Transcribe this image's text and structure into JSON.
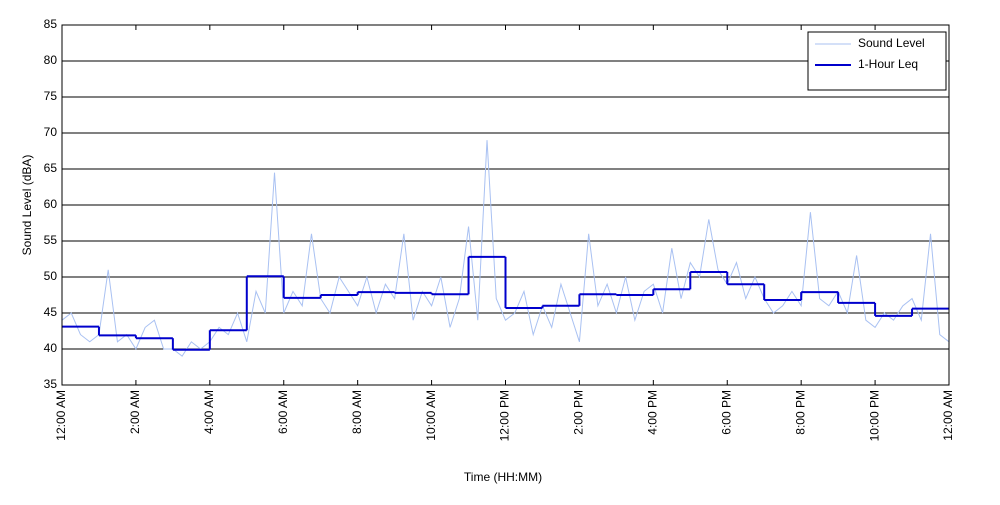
{
  "chart_data": {
    "type": "line",
    "xlabel": "Time (HH:MM)",
    "ylabel": "Sound Level (dBA)",
    "xlim": [
      0,
      24
    ],
    "ylim": [
      35,
      85
    ],
    "xticks": [
      {
        "value": 0,
        "label": "12:00 AM"
      },
      {
        "value": 2,
        "label": "2:00 AM"
      },
      {
        "value": 4,
        "label": "4:00 AM"
      },
      {
        "value": 6,
        "label": "6:00 AM"
      },
      {
        "value": 8,
        "label": "8:00 AM"
      },
      {
        "value": 10,
        "label": "10:00 AM"
      },
      {
        "value": 12,
        "label": "12:00 PM"
      },
      {
        "value": 14,
        "label": "2:00 PM"
      },
      {
        "value": 16,
        "label": "4:00 PM"
      },
      {
        "value": 18,
        "label": "6:00 PM"
      },
      {
        "value": 20,
        "label": "8:00 PM"
      },
      {
        "value": 22,
        "label": "10:00 PM"
      },
      {
        "value": 24,
        "label": "12:00 AM"
      }
    ],
    "yticks": [
      35,
      40,
      45,
      50,
      55,
      60,
      65,
      70,
      75,
      80,
      85
    ],
    "grid": true,
    "legend": "upper right",
    "series": [
      {
        "name": "Sound Level",
        "color": "#a9c1f2",
        "drawstyle": "default",
        "x": [
          0,
          0.25,
          0.5,
          0.75,
          1,
          1.25,
          1.5,
          1.75,
          2,
          2.25,
          2.5,
          2.75,
          3,
          3.25,
          3.5,
          3.75,
          4,
          4.25,
          4.5,
          4.75,
          5,
          5.25,
          5.5,
          5.75,
          6,
          6.25,
          6.5,
          6.75,
          7,
          7.25,
          7.5,
          7.75,
          8,
          8.25,
          8.5,
          8.75,
          9,
          9.25,
          9.5,
          9.75,
          10,
          10.25,
          10.5,
          10.75,
          11,
          11.25,
          11.5,
          11.75,
          12,
          12.25,
          12.5,
          12.75,
          13,
          13.25,
          13.5,
          13.75,
          14,
          14.25,
          14.5,
          14.75,
          15,
          15.25,
          15.5,
          15.75,
          16,
          16.25,
          16.5,
          16.75,
          17,
          17.25,
          17.5,
          17.75,
          18,
          18.25,
          18.5,
          18.75,
          19,
          19.25,
          19.5,
          19.75,
          20,
          20.25,
          20.5,
          20.75,
          21,
          21.25,
          21.5,
          21.75,
          22,
          22.25,
          22.5,
          22.75,
          23,
          23.25,
          23.5,
          23.75,
          24
        ],
        "values": [
          44,
          45,
          42,
          41,
          42,
          51,
          41,
          42,
          40,
          43,
          44,
          40,
          40,
          39,
          41,
          40,
          41,
          43,
          42,
          45,
          41,
          48,
          45,
          64.5,
          45,
          48,
          46,
          56,
          47,
          45,
          50,
          48,
          46,
          50,
          45,
          49,
          47,
          56,
          44,
          48,
          46,
          50,
          43,
          47,
          57,
          44,
          69,
          47,
          44,
          45,
          48,
          42,
          46,
          43,
          49,
          45,
          41,
          56,
          46,
          49,
          45,
          50,
          44,
          48,
          49,
          45,
          54,
          47,
          52,
          50,
          58,
          51,
          49,
          52,
          47,
          50,
          47,
          45,
          46,
          48,
          46,
          59,
          47,
          46,
          48,
          45,
          53,
          44,
          43,
          45,
          44,
          46,
          47,
          44,
          56,
          42,
          41
        ]
      },
      {
        "name": "1-Hour Leq",
        "color": "#0000cc",
        "drawstyle": "steps-post",
        "x": [
          0,
          1,
          2,
          3,
          4,
          5,
          6,
          7,
          8,
          9,
          10,
          11,
          12,
          13,
          14,
          15,
          16,
          17,
          18,
          19,
          20,
          21,
          22,
          23
        ],
        "values": [
          43.1,
          41.9,
          41.5,
          39.9,
          42.6,
          50.1,
          47.1,
          47.5,
          47.9,
          47.8,
          47.6,
          52.8,
          45.7,
          46.0,
          47.6,
          47.5,
          48.3,
          50.7,
          49.0,
          46.8,
          47.9,
          46.4,
          44.6,
          45.6
        ]
      }
    ]
  }
}
